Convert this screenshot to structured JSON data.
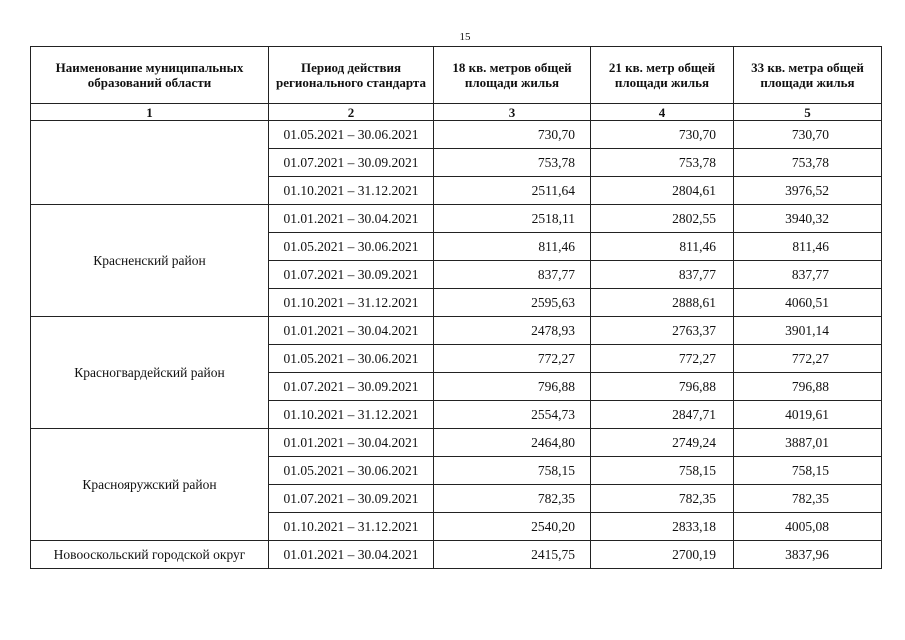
{
  "header": {
    "page_number": "15"
  },
  "table": {
    "columns": [
      "Наименование муниципальных образований области",
      "Период действия регионального стандарта",
      "18 кв. метров общей площади жилья",
      "21 кв. метр общей площади жилья",
      "33 кв. метра общей площади жилья"
    ],
    "column_numbers": [
      "1",
      "2",
      "3",
      "4",
      "5"
    ],
    "groups": [
      {
        "name": null,
        "rows": [
          [
            "01.05.2021 – 30.06.2021",
            "730,70",
            "730,70",
            "730,70"
          ],
          [
            "01.07.2021 – 30.09.2021",
            "753,78",
            "753,78",
            "753,78"
          ],
          [
            "01.10.2021 – 31.12.2021",
            "2511,64",
            "2804,61",
            "3976,52"
          ]
        ]
      },
      {
        "name": "Красненский район",
        "rows": [
          [
            "01.01.2021 – 30.04.2021",
            "2518,11",
            "2802,55",
            "3940,32"
          ],
          [
            "01.05.2021 – 30.06.2021",
            "811,46",
            "811,46",
            "811,46"
          ],
          [
            "01.07.2021 – 30.09.2021",
            "837,77",
            "837,77",
            "837,77"
          ],
          [
            "01.10.2021 – 31.12.2021",
            "2595,63",
            "2888,61",
            "4060,51"
          ]
        ]
      },
      {
        "name": "Красногвардейский район",
        "rows": [
          [
            "01.01.2021 – 30.04.2021",
            "2478,93",
            "2763,37",
            "3901,14"
          ],
          [
            "01.05.2021 – 30.06.2021",
            "772,27",
            "772,27",
            "772,27"
          ],
          [
            "01.07.2021 – 30.09.2021",
            "796,88",
            "796,88",
            "796,88"
          ],
          [
            "01.10.2021 – 31.12.2021",
            "2554,73",
            "2847,71",
            "4019,61"
          ]
        ]
      },
      {
        "name": "Краснояружский район",
        "rows": [
          [
            "01.01.2021 – 30.04.2021",
            "2464,80",
            "2749,24",
            "3887,01"
          ],
          [
            "01.05.2021 – 30.06.2021",
            "758,15",
            "758,15",
            "758,15"
          ],
          [
            "01.07.2021 – 30.09.2021",
            "782,35",
            "782,35",
            "782,35"
          ],
          [
            "01.10.2021 – 31.12.2021",
            "2540,20",
            "2833,18",
            "4005,08"
          ]
        ]
      },
      {
        "name": "Новооскольский городской округ",
        "rows": [
          [
            "01.01.2021 – 30.04.2021",
            "2415,75",
            "2700,19",
            "3837,96"
          ]
        ]
      }
    ]
  }
}
